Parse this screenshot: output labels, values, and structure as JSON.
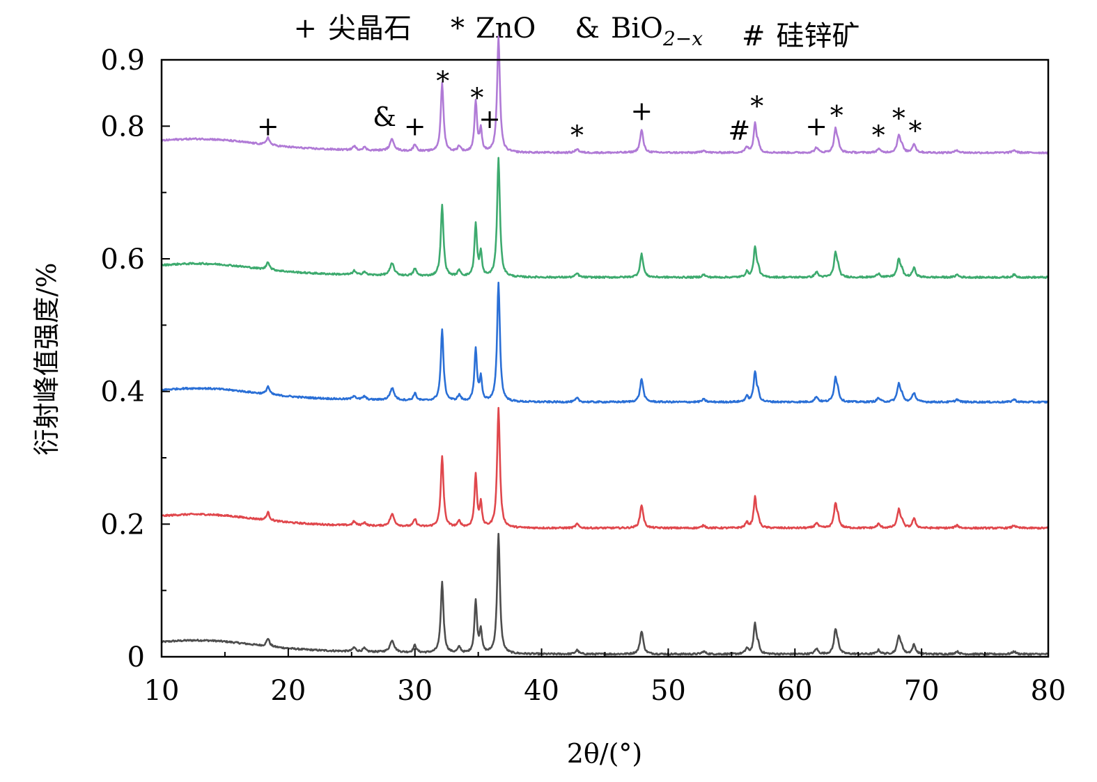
{
  "chart_data": {
    "type": "line",
    "title": "",
    "xlabel": "2θ/(°)",
    "ylabel": "衍射峰值强度/%",
    "xlim": [
      10,
      80
    ],
    "ylim": [
      0,
      0.9
    ],
    "x_ticks": [
      10,
      20,
      30,
      40,
      50,
      60,
      70,
      80
    ],
    "x_tick_labels": [
      "10",
      "20",
      "30",
      "40",
      "50",
      "60",
      "70",
      "80"
    ],
    "x_minor_ticks": [
      15,
      25,
      35,
      45,
      55,
      65,
      75
    ],
    "y_ticks": [
      0,
      0.2,
      0.4,
      0.6,
      0.8
    ],
    "y_tick_labels": [
      "0",
      "0.2",
      "0.4",
      "0.6",
      "0.8"
    ],
    "y_extra_ticks": [
      0.9
    ],
    "y_extra_tick_labels": [
      "0.9"
    ],
    "y_minor_ticks": [
      0.1,
      0.3,
      0.5,
      0.7
    ],
    "grid": false,
    "legend": {
      "placement": "top-center",
      "entries": [
        {
          "symbol": "+",
          "label": "尖晶石"
        },
        {
          "symbol": "*",
          "label": "ZnO"
        },
        {
          "symbol": "&",
          "label": "BiO",
          "subscript": "2−x"
        },
        {
          "symbol": "#",
          "label": "硅锌矿"
        }
      ]
    },
    "peaks": [
      {
        "x": 18.4,
        "h": 0.012,
        "w": 0.14
      },
      {
        "x": 25.2,
        "h": 0.006,
        "w": 0.14
      },
      {
        "x": 26.0,
        "h": 0.005,
        "w": 0.14
      },
      {
        "x": 28.2,
        "h": 0.018,
        "w": 0.2
      },
      {
        "x": 30.0,
        "h": 0.011,
        "w": 0.14
      },
      {
        "x": 32.15,
        "h": 0.107,
        "w": 0.13
      },
      {
        "x": 33.5,
        "h": 0.009,
        "w": 0.15
      },
      {
        "x": 34.8,
        "h": 0.079,
        "w": 0.12
      },
      {
        "x": 35.2,
        "h": 0.035,
        "w": 0.11
      },
      {
        "x": 36.6,
        "h": 0.18,
        "w": 0.13
      },
      {
        "x": 42.8,
        "h": 0.006,
        "w": 0.15
      },
      {
        "x": 47.9,
        "h": 0.035,
        "w": 0.15
      },
      {
        "x": 52.8,
        "h": 0.004,
        "w": 0.16
      },
      {
        "x": 56.2,
        "h": 0.008,
        "w": 0.14
      },
      {
        "x": 56.85,
        "h": 0.045,
        "w": 0.13
      },
      {
        "x": 57.1,
        "h": 0.012,
        "w": 0.11
      },
      {
        "x": 61.7,
        "h": 0.008,
        "w": 0.15
      },
      {
        "x": 63.2,
        "h": 0.035,
        "w": 0.14
      },
      {
        "x": 63.4,
        "h": 0.012,
        "w": 0.12
      },
      {
        "x": 66.6,
        "h": 0.006,
        "w": 0.15
      },
      {
        "x": 68.2,
        "h": 0.027,
        "w": 0.15
      },
      {
        "x": 68.45,
        "h": 0.008,
        "w": 0.12
      },
      {
        "x": 69.4,
        "h": 0.014,
        "w": 0.15
      },
      {
        "x": 72.8,
        "h": 0.004,
        "w": 0.16
      },
      {
        "x": 77.3,
        "h": 0.004,
        "w": 0.16
      }
    ],
    "series": [
      {
        "color": "#4d4d4d",
        "offset": 0.0,
        "peak_scale": 1.0
      },
      {
        "color": "#e0474c",
        "offset": 0.19,
        "peak_scale": 1.0
      },
      {
        "color": "#2a6fd6",
        "offset": 0.38,
        "peak_scale": 1.0
      },
      {
        "color": "#3daa6e",
        "offset": 0.568,
        "peak_scale": 1.0
      },
      {
        "color": "#b07ad6",
        "offset": 0.756,
        "peak_scale": 0.97
      }
    ],
    "annotations": [
      {
        "text": "+",
        "x": 18.4,
        "y": 0.8
      },
      {
        "text": "&",
        "x": 27.6,
        "y": 0.814
      },
      {
        "text": "+",
        "x": 30.0,
        "y": 0.8
      },
      {
        "text": "*",
        "x": 32.2,
        "y": 0.868
      },
      {
        "text": "*",
        "x": 34.9,
        "y": 0.843
      },
      {
        "text": "+",
        "x": 35.9,
        "y": 0.811
      },
      {
        "text": "*",
        "x": 42.8,
        "y": 0.786
      },
      {
        "text": "+",
        "x": 47.9,
        "y": 0.823
      },
      {
        "text": "#",
        "x": 55.6,
        "y": 0.793
      },
      {
        "text": "*",
        "x": 57.0,
        "y": 0.83
      },
      {
        "text": "+",
        "x": 61.7,
        "y": 0.8
      },
      {
        "text": "*",
        "x": 63.3,
        "y": 0.816
      },
      {
        "text": "*",
        "x": 66.6,
        "y": 0.786
      },
      {
        "text": "*",
        "x": 68.2,
        "y": 0.812
      },
      {
        "text": "*",
        "x": 69.5,
        "y": 0.793
      }
    ]
  }
}
